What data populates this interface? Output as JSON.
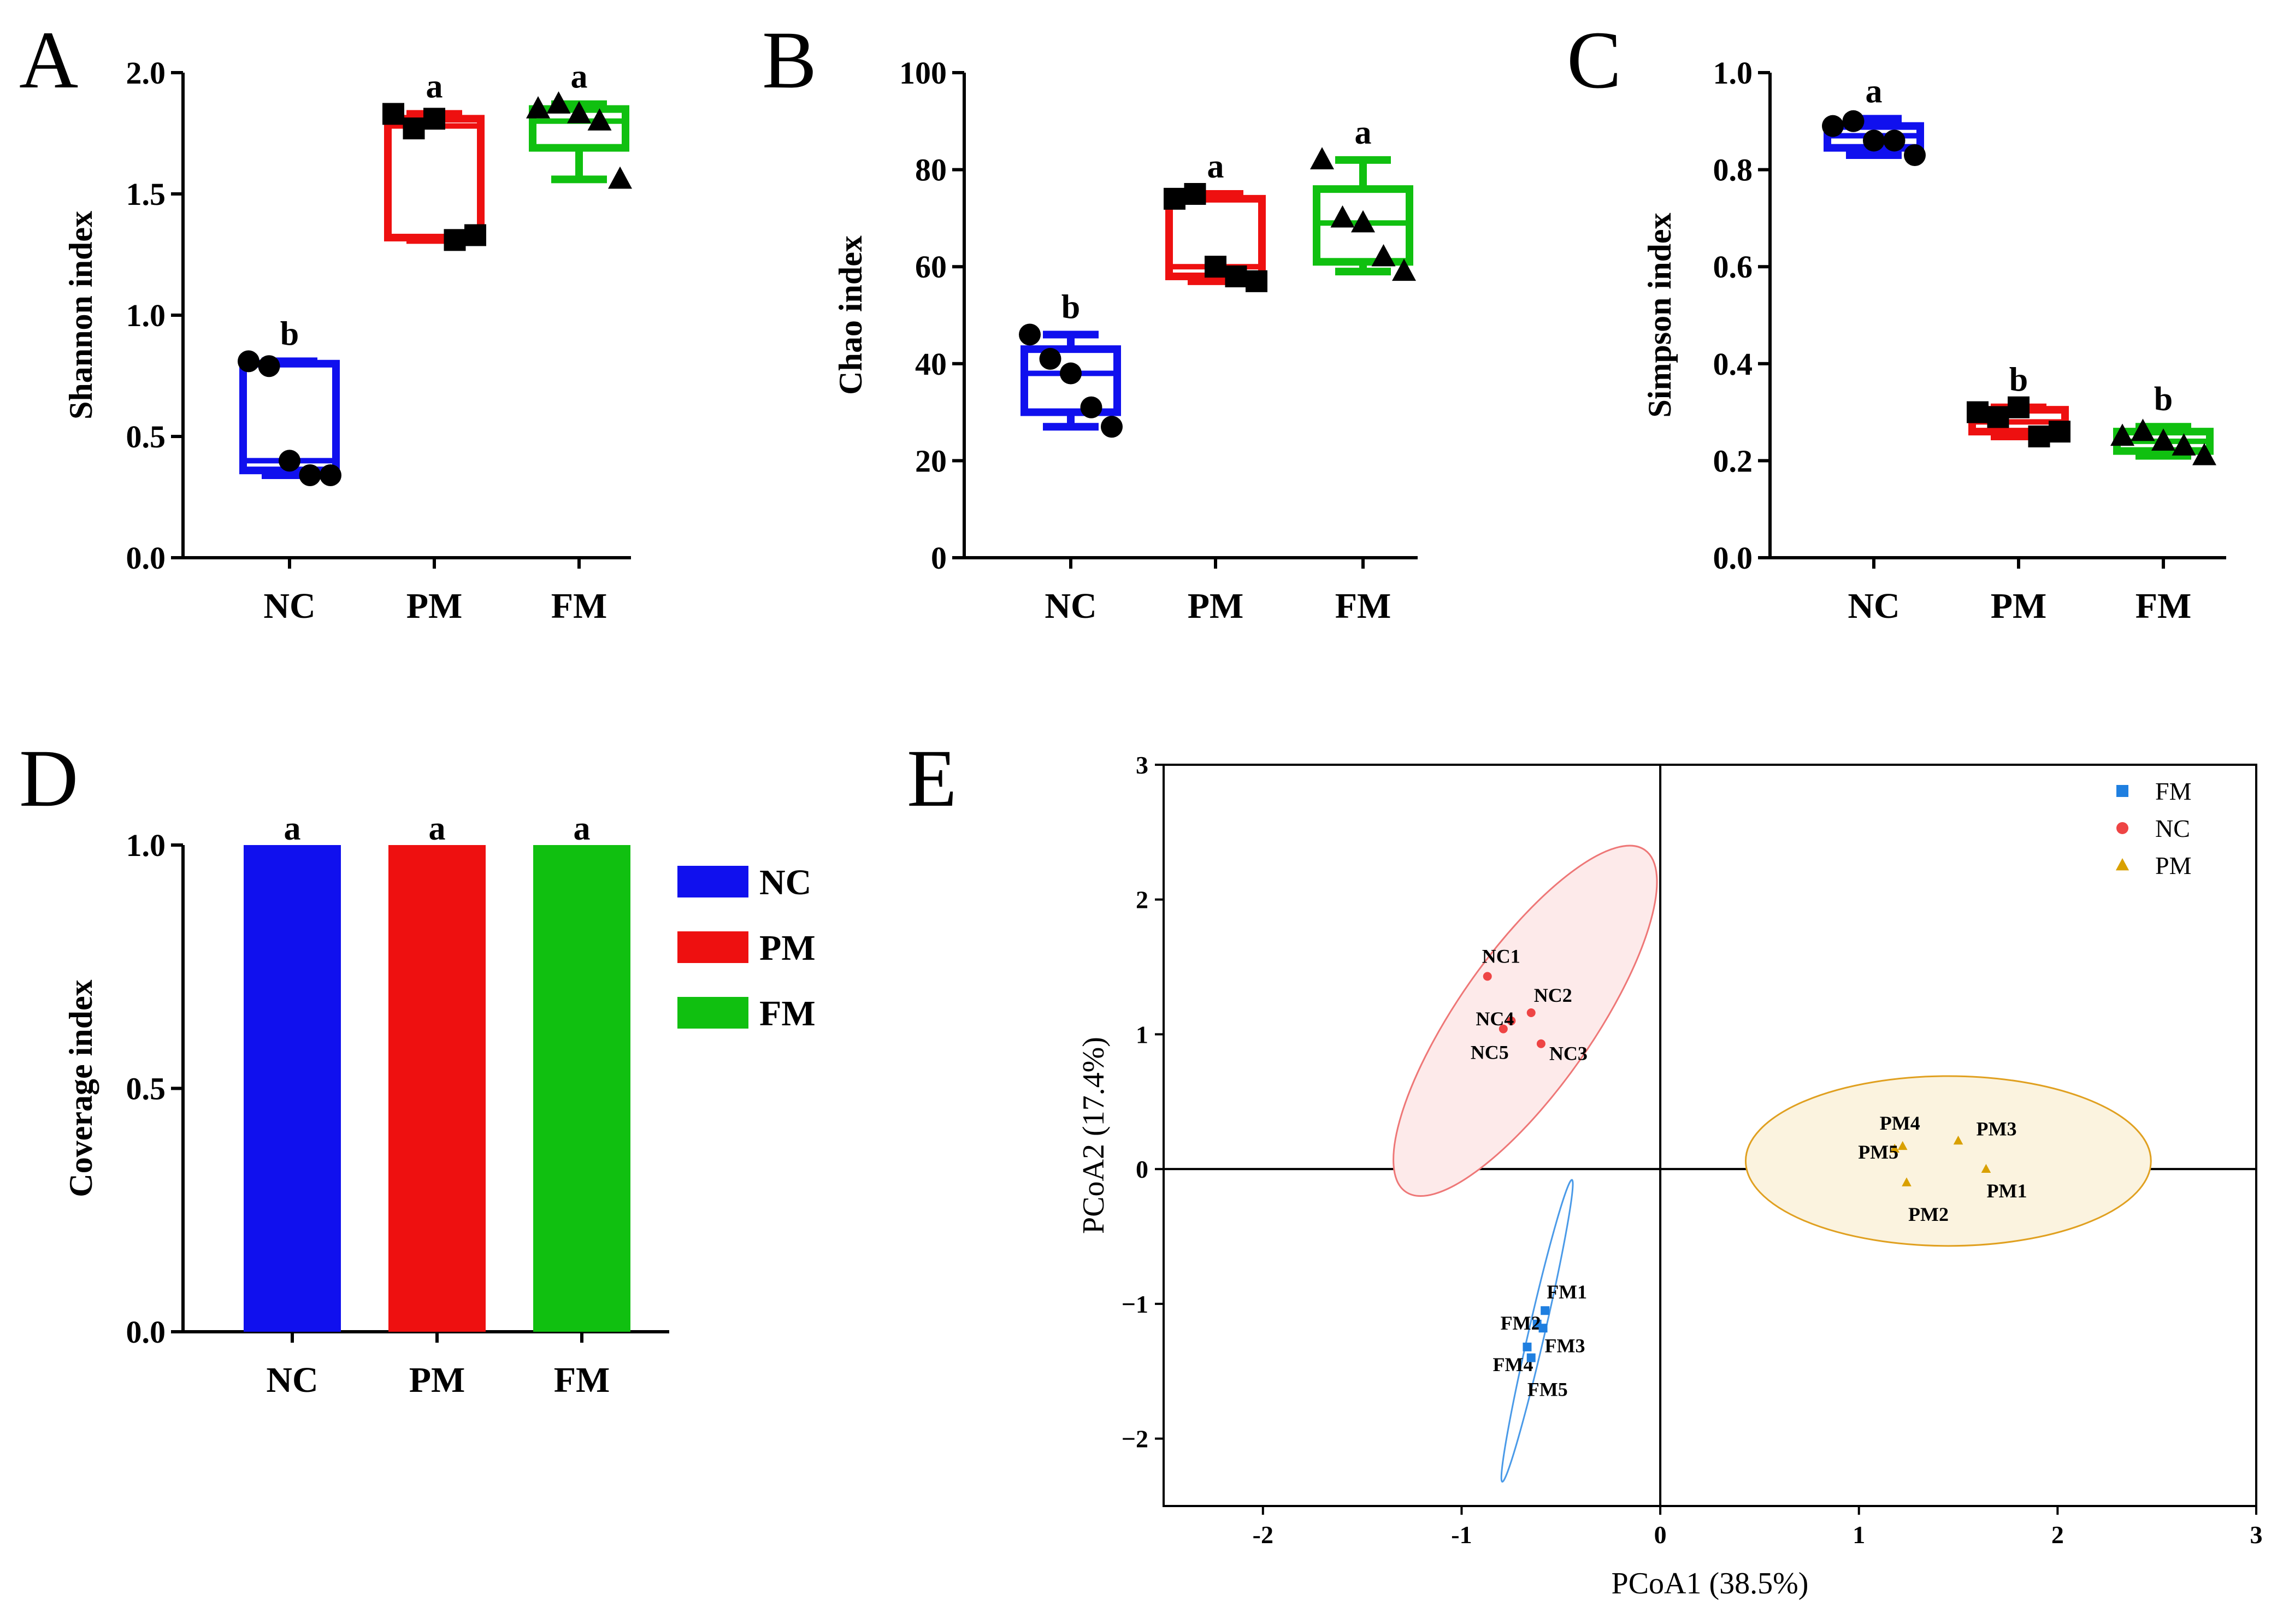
{
  "panels": {
    "A": "A",
    "B": "B",
    "C": "C",
    "D": "D",
    "E": "E"
  },
  "colors": {
    "NC": "#1010ee",
    "PM": "#ee1010",
    "FM": "#10c010",
    "fm_points": "#1f7fe0",
    "nc_points": "#ee4444",
    "pm_points": "#d9a000",
    "nc_ellipse_fill": "#fdeaea",
    "nc_ellipse_stroke": "#ee7777",
    "pm_ellipse_fill": "#fbf3df",
    "pm_ellipse_stroke": "#e0a020",
    "fm_ellipse_stroke": "#4a9ae8"
  },
  "chart_data": [
    {
      "id": "A",
      "type": "box",
      "ylabel": "Shannon index",
      "ylim": [
        0,
        2.0
      ],
      "yticks": [
        0.0,
        0.5,
        1.0,
        1.5,
        2.0
      ],
      "ytick_labels": [
        "0.0",
        "0.5",
        "1.0",
        "1.5",
        "2.0"
      ],
      "categories": [
        "NC",
        "PM",
        "FM"
      ],
      "markers": [
        "circle",
        "square",
        "triangle"
      ],
      "boxes": [
        {
          "min": 0.34,
          "q1": 0.36,
          "median": 0.4,
          "q3": 0.8,
          "max": 0.81
        },
        {
          "min": 1.31,
          "q1": 1.32,
          "median": 1.78,
          "q3": 1.81,
          "max": 1.83
        },
        {
          "min": 1.56,
          "q1": 1.69,
          "median": 1.8,
          "q3": 1.85,
          "max": 1.87
        }
      ],
      "points": [
        [
          0.81,
          0.79,
          0.4,
          0.34,
          0.34
        ],
        [
          1.83,
          1.77,
          1.81,
          1.31,
          1.33
        ],
        [
          1.85,
          1.87,
          1.83,
          1.8,
          1.56
        ]
      ],
      "significance": [
        "b",
        "a",
        "a"
      ]
    },
    {
      "id": "B",
      "type": "box",
      "ylabel": "Chao index",
      "ylim": [
        0,
        100
      ],
      "yticks": [
        0,
        20,
        40,
        60,
        80,
        100
      ],
      "ytick_labels": [
        "0",
        "20",
        "40",
        "60",
        "80",
        "100"
      ],
      "categories": [
        "NC",
        "PM",
        "FM"
      ],
      "markers": [
        "circle",
        "square",
        "triangle"
      ],
      "boxes": [
        {
          "min": 27,
          "q1": 30,
          "median": 38,
          "q3": 43,
          "max": 46
        },
        {
          "min": 57,
          "q1": 58,
          "median": 60,
          "q3": 74,
          "max": 75
        },
        {
          "min": 59,
          "q1": 61,
          "median": 69,
          "q3": 76,
          "max": 82
        }
      ],
      "points": [
        [
          46,
          41,
          38,
          31,
          27
        ],
        [
          74,
          75,
          60,
          58,
          57
        ],
        [
          82,
          70,
          69,
          62,
          59
        ]
      ],
      "significance": [
        "b",
        "a",
        "a"
      ]
    },
    {
      "id": "C",
      "type": "box",
      "ylabel": "Simpson index",
      "ylim": [
        0,
        1.0
      ],
      "yticks": [
        0.0,
        0.2,
        0.4,
        0.6,
        0.8,
        1.0
      ],
      "ytick_labels": [
        "0.0",
        "0.2",
        "0.4",
        "0.6",
        "0.8",
        "1.0"
      ],
      "categories": [
        "NC",
        "PM",
        "FM"
      ],
      "markers": [
        "circle",
        "square",
        "triangle"
      ],
      "boxes": [
        {
          "min": 0.83,
          "q1": 0.845,
          "median": 0.87,
          "q3": 0.89,
          "max": 0.905
        },
        {
          "min": 0.25,
          "q1": 0.26,
          "median": 0.28,
          "q3": 0.305,
          "max": 0.31
        },
        {
          "min": 0.21,
          "q1": 0.22,
          "median": 0.24,
          "q3": 0.26,
          "max": 0.27
        }
      ],
      "points": [
        [
          0.89,
          0.9,
          0.86,
          0.86,
          0.83
        ],
        [
          0.3,
          0.29,
          0.31,
          0.25,
          0.26
        ],
        [
          0.25,
          0.26,
          0.24,
          0.23,
          0.21
        ]
      ],
      "significance": [
        "a",
        "b",
        "b"
      ]
    },
    {
      "id": "D",
      "type": "bar",
      "ylabel": "Coverage index",
      "ylim": [
        0,
        1.0
      ],
      "yticks": [
        0.0,
        0.5,
        1.0
      ],
      "ytick_labels": [
        "0.0",
        "0.5",
        "1.0"
      ],
      "categories": [
        "NC",
        "PM",
        "FM"
      ],
      "values": [
        1.0,
        1.0,
        1.0
      ],
      "significance": [
        "a",
        "a",
        "a"
      ],
      "legend": [
        "NC",
        "PM",
        "FM"
      ]
    },
    {
      "id": "E",
      "type": "scatter",
      "xlabel": "PCoA1 (38.5%)",
      "ylabel": "PCoA2 (17.4%)",
      "xlim": [
        -2.5,
        3
      ],
      "ylim": [
        -2.5,
        3
      ],
      "xticks": [
        -2,
        -1,
        0,
        1,
        2,
        3
      ],
      "yticks": [
        -2,
        -1,
        0,
        1,
        2,
        3
      ],
      "xtick_labels": [
        "-2",
        "-1",
        "0",
        "1",
        "2",
        "3"
      ],
      "ytick_labels": [
        "−2",
        "−1",
        "0",
        "1",
        "2",
        "3"
      ],
      "legend": [
        "FM",
        "NC",
        "PM"
      ],
      "series": [
        {
          "name": "FM",
          "marker": "square",
          "points": [
            {
              "label": "FM1",
              "x": -0.58,
              "y": -1.05
            },
            {
              "label": "FM2",
              "x": -0.62,
              "y": -1.15
            },
            {
              "label": "FM3",
              "x": -0.59,
              "y": -1.18
            },
            {
              "label": "FM4",
              "x": -0.67,
              "y": -1.32
            },
            {
              "label": "FM5",
              "x": -0.65,
              "y": -1.4
            }
          ],
          "ellipse": {
            "cx": -0.62,
            "cy": -1.2,
            "major": 0.78,
            "minor": 0.06,
            "angle_deg": 77
          }
        },
        {
          "name": "NC",
          "marker": "circle",
          "points": [
            {
              "label": "NC1",
              "x": -0.87,
              "y": 1.43
            },
            {
              "label": "NC2",
              "x": -0.65,
              "y": 1.16
            },
            {
              "label": "NC4",
              "x": -0.75,
              "y": 1.1
            },
            {
              "label": "NC5",
              "x": -0.79,
              "y": 1.04
            },
            {
              "label": "NC3",
              "x": -0.6,
              "y": 0.93
            }
          ],
          "ellipse": {
            "cx": -0.68,
            "cy": 1.1,
            "major": 1.05,
            "minor": 0.5,
            "angle_deg": 55
          }
        },
        {
          "name": "PM",
          "marker": "triangle",
          "points": [
            {
              "label": "PM4",
              "x": 1.22,
              "y": 0.17
            },
            {
              "label": "PM5",
              "x": 1.18,
              "y": 0.15
            },
            {
              "label": "PM3",
              "x": 1.5,
              "y": 0.21
            },
            {
              "label": "PM2",
              "x": 1.24,
              "y": -0.1
            },
            {
              "label": "PM1",
              "x": 1.64,
              "y": 0.0
            }
          ],
          "ellipse": {
            "cx": 1.45,
            "cy": 0.06,
            "major": 1.02,
            "minor": 0.63,
            "angle_deg": 0
          }
        }
      ]
    }
  ]
}
